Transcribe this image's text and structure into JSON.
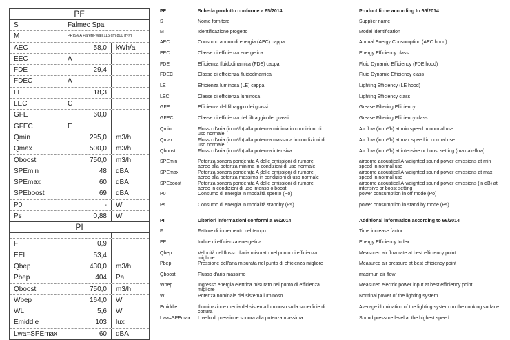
{
  "table": {
    "pf_title": "PF",
    "supplier_row": {
      "label": "S",
      "value": "Falmec Spa"
    },
    "model_row": {
      "label": "M",
      "value": "PRISMA Parete-Wall 115 cm 800 m³/h"
    },
    "pf_rows": [
      {
        "label": "AEC",
        "value": "58,0",
        "unit": "kWh/a",
        "num": true
      },
      {
        "label": "EEC",
        "value": "A",
        "unit": "",
        "num": false
      },
      {
        "label": "FDE",
        "value": "29,4",
        "unit": "",
        "num": true
      },
      {
        "label": "FDEC",
        "value": "A",
        "unit": "",
        "num": false
      },
      {
        "label": "LE",
        "value": "18,3",
        "unit": "",
        "num": true
      },
      {
        "label": "LEC",
        "value": "C",
        "unit": "",
        "num": false
      },
      {
        "label": "GFE",
        "value": "60,0",
        "unit": "",
        "num": true
      },
      {
        "label": "GFEC",
        "value": "E",
        "unit": "",
        "num": false
      },
      {
        "label": "Qmin",
        "value": "295,0",
        "unit": "m3/h",
        "num": true
      },
      {
        "label": "Qmax",
        "value": "500,0",
        "unit": "m3/h",
        "num": true
      },
      {
        "label": "Qboost",
        "value": "750,0",
        "unit": "m3/h",
        "num": true
      },
      {
        "label": "SPEmin",
        "value": "48",
        "unit": "dBA",
        "num": true
      },
      {
        "label": "SPEmax",
        "value": "60",
        "unit": "dBA",
        "num": true
      },
      {
        "label": "SPEboost",
        "value": "69",
        "unit": "dBA",
        "num": true
      },
      {
        "label": "P0",
        "value": "-",
        "unit": "W",
        "num": true
      },
      {
        "label": "Ps",
        "value": "0,88",
        "unit": "W",
        "num": true
      }
    ],
    "pi_title": "PI",
    "pi_rows": [
      {
        "label": "F",
        "value": "0,9",
        "unit": ""
      },
      {
        "label": "EEI",
        "value": "53,4",
        "unit": ""
      },
      {
        "label": "Qbep",
        "value": "430,0",
        "unit": "m3/h"
      },
      {
        "label": "Pbep",
        "value": "404",
        "unit": "Pa"
      },
      {
        "label": "Qboost",
        "value": "750,0",
        "unit": "m3/h"
      },
      {
        "label": "Wbep",
        "value": "164,0",
        "unit": "W"
      },
      {
        "label": "WL",
        "value": "5,6",
        "unit": "W"
      },
      {
        "label": "Emiddle",
        "value": "103",
        "unit": "lux"
      },
      {
        "label": "Lwa=SPEmax",
        "value": "60",
        "unit": "dBA"
      }
    ]
  },
  "legend": [
    {
      "code": "PF",
      "it": "Scheda prodotto conforme a 65/2014",
      "en": "Product fiche according to 65/2014",
      "bold": true
    },
    {
      "code": "S",
      "it": "Nome fornitore",
      "en": "Supplier name"
    },
    {
      "code": "M",
      "it": "Identificazione progetto",
      "en": "Model identification"
    },
    {
      "code": "AEC",
      "it": "Consumo annuo di energia (AEC) cappa",
      "en": "Annual Energy Consumption (AEC hood)"
    },
    {
      "code": "EEC",
      "it": "Classe di efficienza energetica",
      "en": "Energy Efficiency class"
    },
    {
      "code": "FDE",
      "it": "Efficienza fluidodinamica (FDE) cappa",
      "en": "Fluid Dynamic Efficiency (FDE hood)"
    },
    {
      "code": "FDEC",
      "it": "Classe di efficienza fluidodinamica",
      "en": "Fluid Dynamic Efficiency class"
    },
    {
      "code": "LE",
      "it": "Efficienza luminosa (LE) cappa",
      "en": "Lighting Efficiency (LE hood)"
    },
    {
      "code": "LEC",
      "it": "Classe di efficienza luminosa",
      "en": "Lighting Efficiency class"
    },
    {
      "code": "GFE",
      "it": "Efficienza del filtraggio dei grassi",
      "en": "Grease Filtering Efficiency"
    },
    {
      "code": "GFEC",
      "it": "Classe di efficienza del filtraggio dei grassi",
      "en": "Grease Filtering Efficiency class"
    },
    {
      "code": "Qmin",
      "it": "Flusso d'aria (in m³/h) alla potenza minima in condizioni di uso normale",
      "en": "Air flow (in m³/h) at min speed in normal use"
    },
    {
      "code": "Qmax",
      "it": "Flusso d'aria (in m³/h) alla potenza massima in condizioni di uso normale",
      "en": "Air flow (in m³/h) at max speed in normal use"
    },
    {
      "code": "Qboost",
      "it": "Flusso d'aria (in m³/h) alla potenza intensiva",
      "en": "Air flow (in m³/h) at intensive or boost setting (max air-flow)"
    },
    {
      "code": "SPEmin",
      "it": "Potenza sonora ponderata A delle emissioni di rumore aereo alla potenza minima in condizioni di uso normale",
      "en": "airborne acoustical A-weighted sound power emissions at min speed in normal use"
    },
    {
      "code": "SPEmax",
      "it": "Potenza sonora ponderata A delle emissioni di rumore aereo alla potenza massima in condizioni di uso normale",
      "en": "airborne acoustical A-weighted sound power emissions at max speed in normal use"
    },
    {
      "code": "SPEboost",
      "it": "Potenza sonora ponderata A delle emissioni di rumore aereo in condizioni di uso intenso o boost",
      "en": "airborne acoustical A-weighted sound power emissions (in dB) at intensive or boost setting"
    },
    {
      "code": "P0",
      "it": "Consumo di energia in modalità spento (Po)",
      "en": "power consumption in off mode (Po)"
    },
    {
      "code": "Ps",
      "it": "Consumo di energia in modalità standby (Ps)",
      "en": "power consumption in stand by mode (Ps)"
    },
    {
      "code": "PI",
      "it": "Ulteriori informazioni conformi a 66/2014",
      "en": "Additional information according to 66/2014",
      "bold": true
    },
    {
      "code": "F",
      "it": "Fattore di incremento nel tempo",
      "en": "Time increase factor"
    },
    {
      "code": "EEI",
      "it": "Indice di efficienza energetica",
      "en": "Energy Efficiency Index"
    },
    {
      "code": "Qbep",
      "it": "Velocità del flusso d'aria misurato nel punto di efficienza migliore",
      "en": "Measured air flow rate at best efficiency point"
    },
    {
      "code": "Pbep",
      "it": "Pressione dell'aria misurata nel punto di efficienza migliore",
      "en": "Measured air pressure at best efficiency point"
    },
    {
      "code": "Qboost",
      "it": "Flusso d'aria massimo",
      "en": "maximun air flow"
    },
    {
      "code": "Wbep",
      "it": "Ingresso energia elettrica misurato nel punto di efficienza migliore",
      "en": "Measured electric power input at best efficiency point"
    },
    {
      "code": "WL",
      "it": "Potenza nominale del sistema luminoso",
      "en": "Nominal power of the lighting system"
    },
    {
      "code": "Emiddle",
      "it": "Illuminazione media del sistema luminoso sulla superficie di cottura",
      "en": "Average illumination of the lighting system on the cooking surface"
    },
    {
      "code": "Lwa=SPEmax",
      "it": "Livello di pressione sonora alla potenza massima",
      "en": "Sound pressure level at the highest speed"
    }
  ]
}
